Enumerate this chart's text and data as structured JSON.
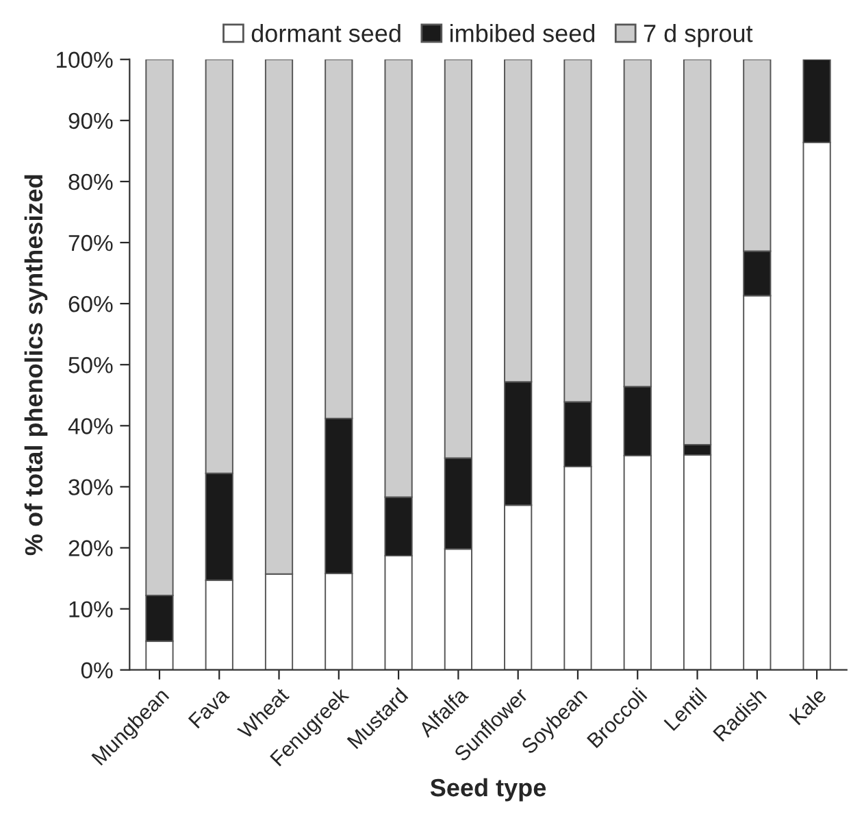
{
  "chart_data": {
    "type": "bar",
    "stacked": true,
    "xlabel": "Seed type",
    "ylabel": "% of total phenolics synthesized",
    "categories": [
      "Mungbean",
      "Fava",
      "Wheat",
      "Fenugreek",
      "Mustard",
      "Alfalfa",
      "Sunflower",
      "Soybean",
      "Broccoli",
      "Lentil",
      "Radish",
      "Kale"
    ],
    "series": [
      {
        "name": "dormant seed",
        "color": "#ffffff",
        "values": [
          4.7,
          14.7,
          15.7,
          15.8,
          18.7,
          19.8,
          27.0,
          33.3,
          35.1,
          35.2,
          61.3,
          86.4
        ]
      },
      {
        "name": "imbibed seed",
        "color": "#1a1a1a",
        "values": [
          7.5,
          17.5,
          0,
          25.4,
          9.6,
          14.9,
          20.2,
          10.6,
          11.3,
          1.7,
          7.3,
          13.6
        ]
      },
      {
        "name": "7 d sprout",
        "color": "#cccccc",
        "values": [
          87.8,
          67.8,
          84.3,
          58.8,
          71.7,
          65.3,
          52.8,
          56.1,
          53.6,
          63.1,
          31.4,
          0
        ]
      }
    ],
    "ylim": [
      0,
      100
    ],
    "yticks": [
      {
        "value": 0,
        "label": "0%"
      },
      {
        "value": 10,
        "label": "10%"
      },
      {
        "value": 20,
        "label": "20%"
      },
      {
        "value": 30,
        "label": "30%"
      },
      {
        "value": 40,
        "label": "40%"
      },
      {
        "value": 50,
        "label": "50%"
      },
      {
        "value": 60,
        "label": "60%"
      },
      {
        "value": 70,
        "label": "70%"
      },
      {
        "value": 80,
        "label": "80%"
      },
      {
        "value": 90,
        "label": "90%"
      },
      {
        "value": 100,
        "label": "100%"
      }
    ],
    "legend": "top",
    "grid": false
  }
}
